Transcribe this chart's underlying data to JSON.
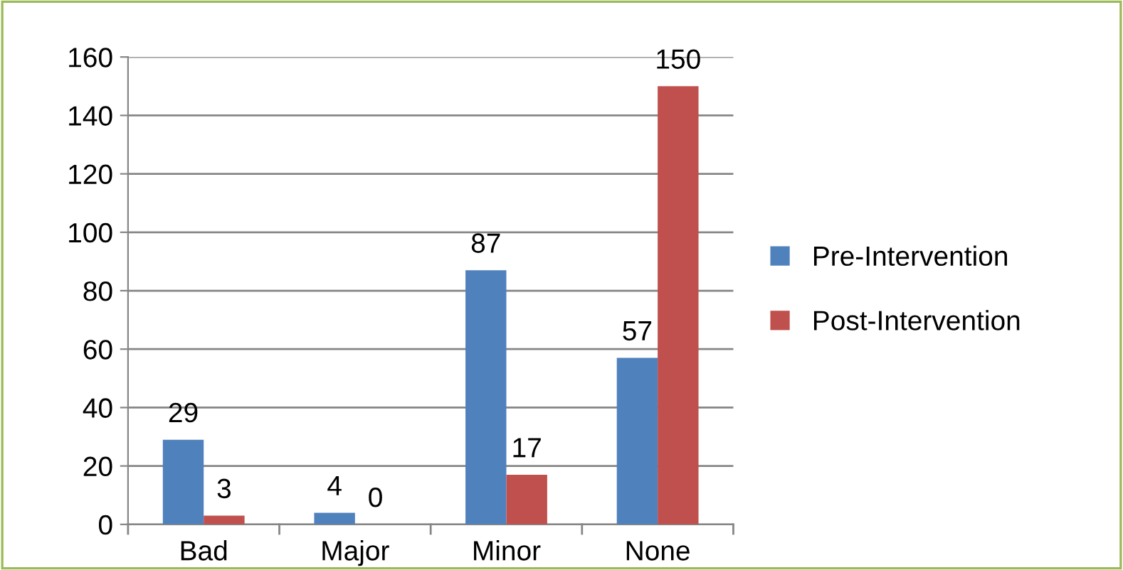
{
  "chart_data": {
    "type": "bar",
    "categories": [
      "Bad",
      "Major",
      "Minor",
      "None"
    ],
    "series": [
      {
        "name": "Pre-Intervention",
        "color": "#4f81bd",
        "values": [
          29,
          4,
          87,
          57
        ]
      },
      {
        "name": "Post-Intervention",
        "color": "#c0504d",
        "values": [
          3,
          0,
          17,
          150
        ]
      }
    ],
    "ylim": [
      0,
      160
    ],
    "yticks": [
      0,
      20,
      40,
      60,
      80,
      100,
      120,
      140,
      160
    ],
    "grid": "y",
    "legend": "right",
    "data_labels": true
  }
}
